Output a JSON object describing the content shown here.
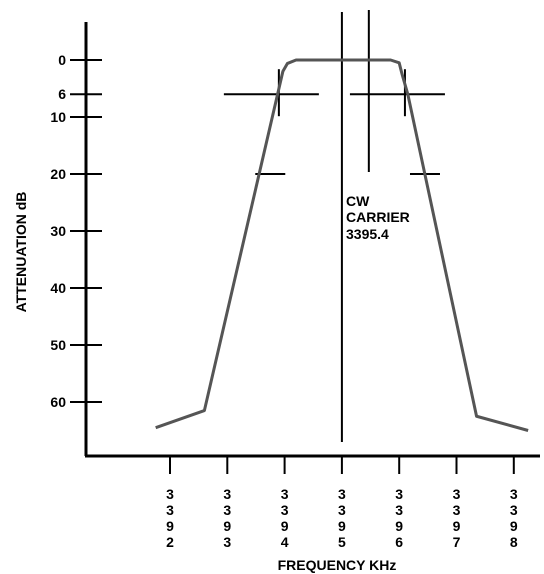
{
  "chart_data": {
    "type": "line",
    "title": "",
    "xlabel": "FREQUENCY KHz",
    "ylabel": "ATTENUATION dB",
    "y_inverted": true,
    "ylim": [
      0,
      70
    ],
    "xlim": [
      3391.5,
      3398.5
    ],
    "grid": false,
    "y_ticks": [
      0,
      6,
      10,
      20,
      30,
      40,
      50,
      60
    ],
    "x_ticks": [
      3392,
      3393,
      3394,
      3395,
      3396,
      3397,
      3398
    ],
    "x_tick_labels": [
      [
        "3",
        "3",
        "9",
        "2"
      ],
      [
        "3",
        "3",
        "9",
        "3"
      ],
      [
        "3",
        "3",
        "9",
        "4"
      ],
      [
        "3",
        "3",
        "9",
        "5"
      ],
      [
        "3",
        "3",
        "9",
        "6"
      ],
      [
        "3",
        "3",
        "9",
        "7"
      ],
      [
        "3",
        "3",
        "9",
        "8"
      ]
    ],
    "series": [
      {
        "name": "",
        "x": [
          3391.75,
          3392.6,
          3393.97,
          3394.05,
          3394.2,
          3395.0,
          3395.85,
          3396.0,
          3396.05,
          3396.15,
          3397.35,
          3398.25
        ],
        "y": [
          64.5,
          61.5,
          2,
          0.6,
          0,
          0,
          0,
          0.5,
          2.5,
          6,
          62.5,
          65
        ],
        "color": "#555555"
      }
    ],
    "annotations": {
      "carrier_label": [
        "CW",
        "CARRIER",
        "3395.4"
      ],
      "carrier_x": 3395.0,
      "marker_x": 3395.47,
      "markers_6db": [
        3393.9,
        3396.1
      ],
      "markers_20db": [
        3393.75,
        3396.45
      ]
    }
  }
}
